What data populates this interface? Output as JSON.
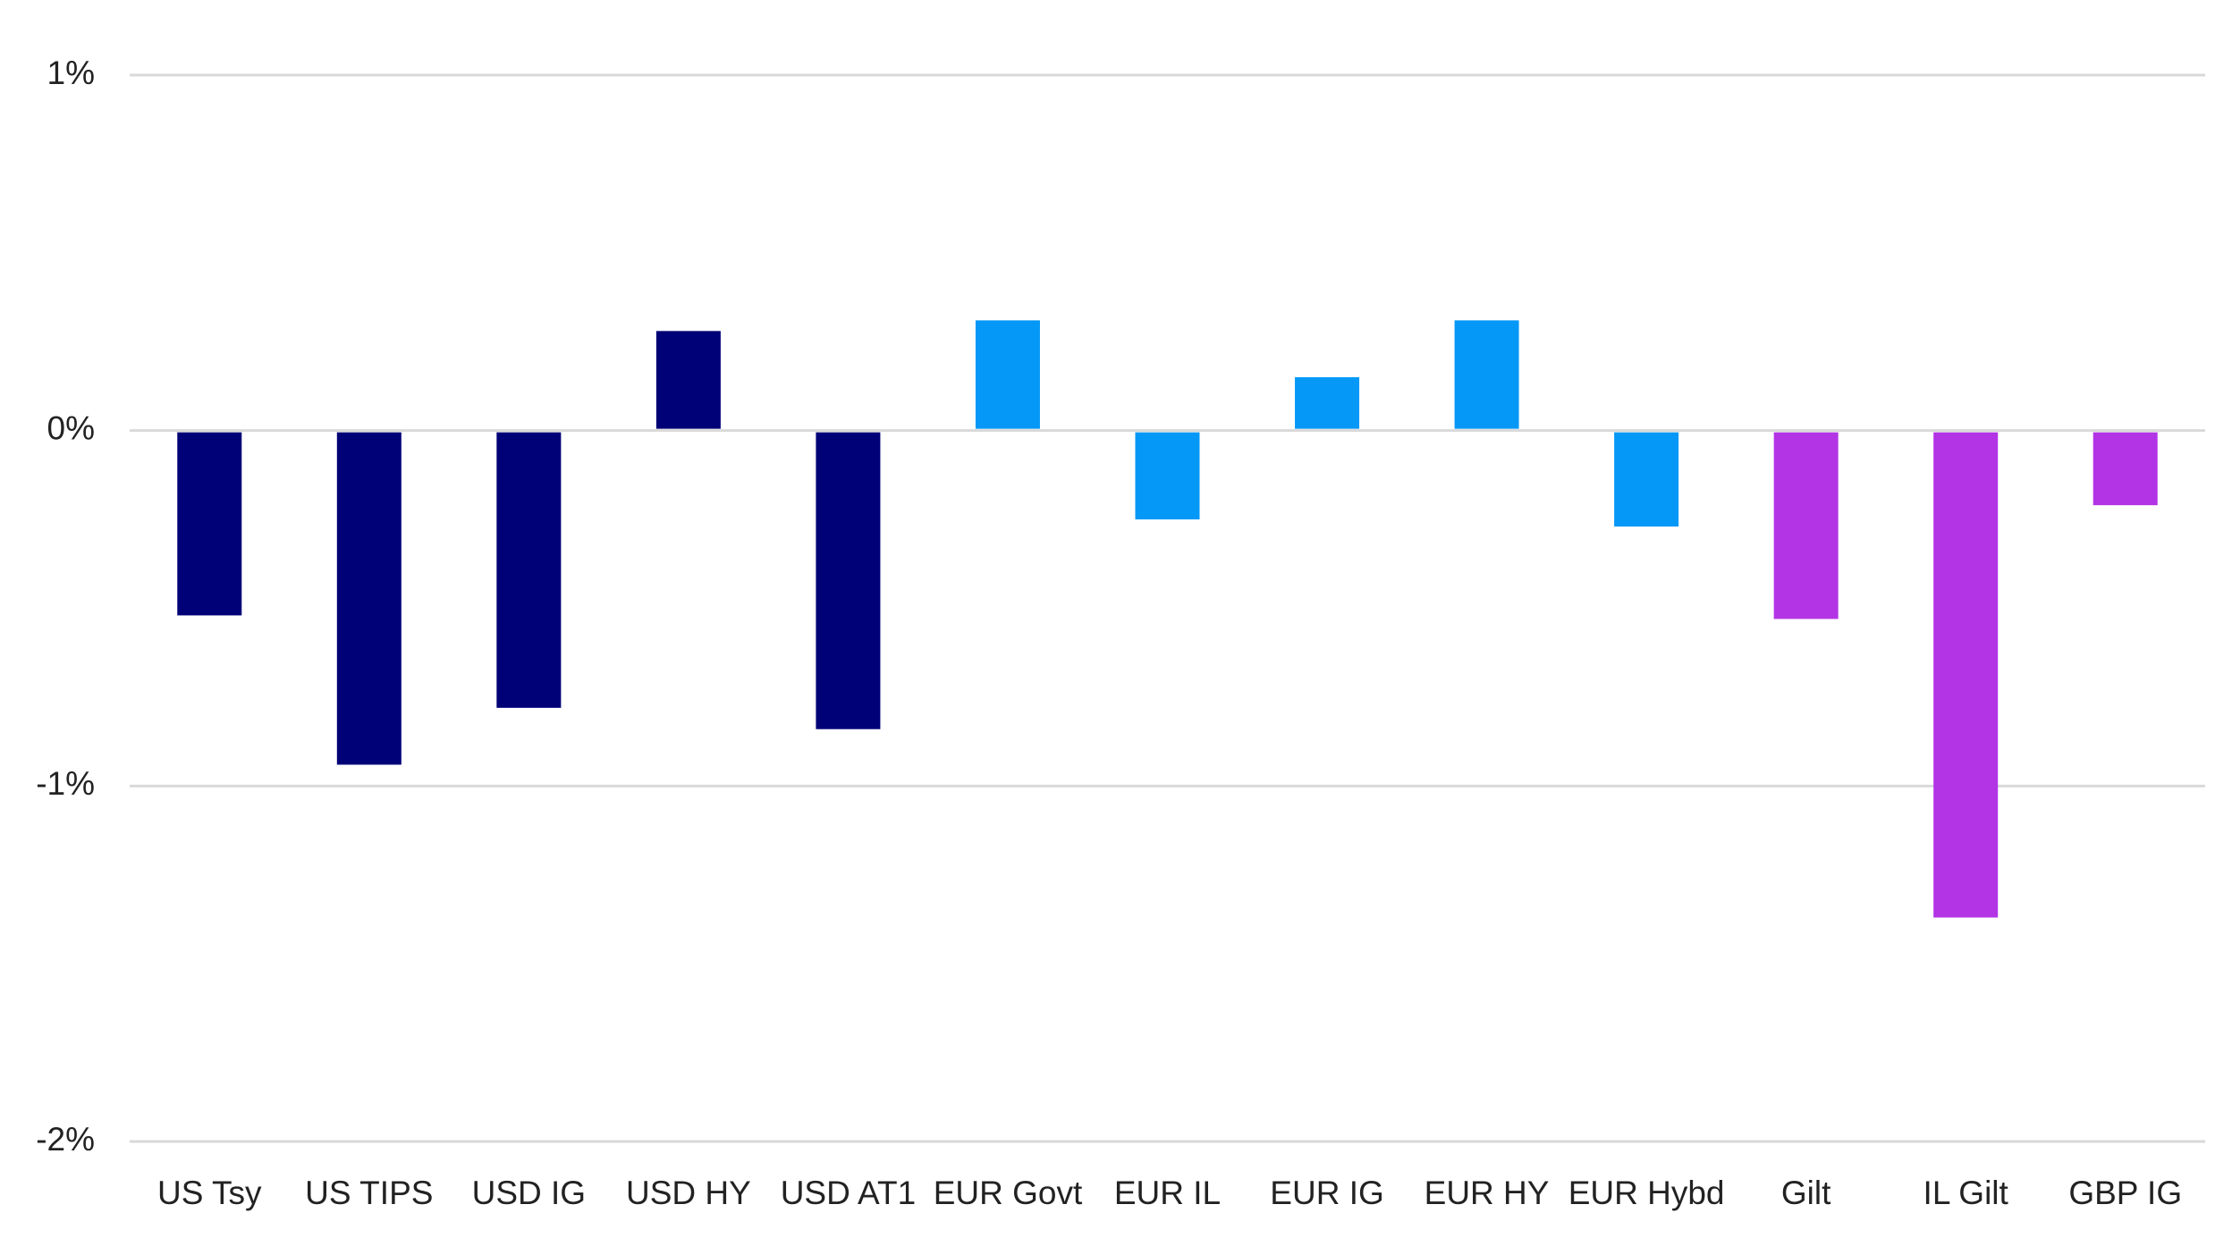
{
  "chart_data": {
    "type": "bar",
    "title": "",
    "xlabel": "",
    "ylabel": "",
    "ylim": [
      -2,
      1
    ],
    "yticks": [
      {
        "value": 1,
        "label": "1%"
      },
      {
        "value": 0,
        "label": "0%"
      },
      {
        "value": -1,
        "label": "-1%"
      },
      {
        "value": -2,
        "label": "-2%"
      }
    ],
    "grid": true,
    "legend": "none",
    "categories": [
      "US Tsy",
      "US TIPS",
      "USD IG",
      "USD HY",
      "USD AT1",
      "EUR Govt",
      "EUR IL",
      "EUR IG",
      "EUR HY",
      "EUR Hybd",
      "Gilt",
      "IL Gilt",
      "GBP IG"
    ],
    "values": [
      -0.52,
      -0.94,
      -0.78,
      0.28,
      -0.84,
      0.31,
      -0.25,
      0.15,
      0.31,
      -0.27,
      -0.53,
      -1.37,
      -0.21
    ],
    "colors": [
      "#000077",
      "#000077",
      "#000077",
      "#000077",
      "#000077",
      "#0598f7",
      "#0598f7",
      "#0598f7",
      "#0598f7",
      "#0598f7",
      "#b234e5",
      "#b234e5",
      "#b234e5"
    ]
  }
}
